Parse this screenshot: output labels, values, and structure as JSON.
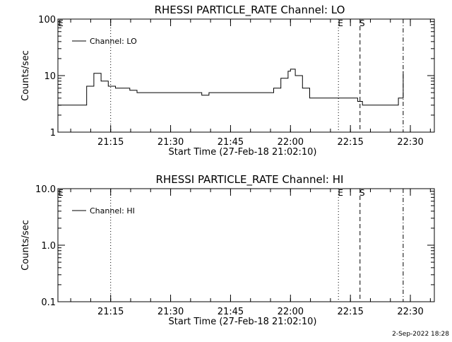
{
  "footer_timestamp": "2-Sep-2022 18:28",
  "chart_data": [
    {
      "type": "line",
      "title": "RHESSI PARTICLE_RATE Channel: LO",
      "xlabel": "Start Time (27-Feb-18 21:02:10)",
      "ylabel": "Counts/sec",
      "y_scale": "log",
      "ylim": [
        1,
        100
      ],
      "y_ticks": [
        {
          "value": 1,
          "label": "1"
        },
        {
          "value": 10,
          "label": "10"
        },
        {
          "value": 100,
          "label": "100"
        }
      ],
      "x_range_minutes": [
        21.03,
        22.6
      ],
      "x_ticks": [
        {
          "value": 21.25,
          "label": "21:15"
        },
        {
          "value": 21.5,
          "label": "21:30"
        },
        {
          "value": 21.75,
          "label": "21:45"
        },
        {
          "value": 22.0,
          "label": "22:00"
        },
        {
          "value": 22.25,
          "label": "22:15"
        },
        {
          "value": 22.5,
          "label": "22:30"
        }
      ],
      "legend": {
        "entries": [
          "Channel: LO"
        ],
        "placement": "top-left"
      },
      "markers": [
        {
          "label": "E",
          "x": 21.02,
          "style": "none"
        },
        {
          "label": "",
          "x": 21.25,
          "style": "dotted"
        },
        {
          "label": "E",
          "x": 22.2,
          "style": "dotted"
        },
        {
          "label": "S",
          "x": 22.29,
          "style": "dashed"
        },
        {
          "label": "",
          "x": 22.47,
          "style": "dashdot"
        }
      ],
      "series": [
        {
          "name": "Channel: LO",
          "x": [
            21.03,
            21.06,
            21.09,
            21.12,
            21.15,
            21.18,
            21.21,
            21.24,
            21.27,
            21.3,
            21.33,
            21.36,
            21.39,
            21.42,
            21.45,
            21.48,
            21.51,
            21.54,
            21.57,
            21.6,
            21.63,
            21.66,
            21.69,
            21.72,
            21.75,
            21.78,
            21.81,
            21.84,
            21.87,
            21.9,
            21.93,
            21.96,
            21.99,
            22.0,
            22.02,
            22.05,
            22.08,
            22.11,
            22.14,
            22.17,
            22.2,
            22.22,
            22.25,
            22.28,
            22.3,
            22.33,
            22.36,
            22.39,
            22.41,
            22.43,
            22.45,
            22.47
          ],
          "y": [
            3,
            3,
            3,
            3,
            6.5,
            11,
            8,
            6.5,
            6,
            6,
            5.5,
            5,
            5,
            5,
            5,
            5,
            5,
            5,
            5,
            5,
            4.5,
            5,
            5,
            5,
            5,
            5,
            5,
            5,
            5,
            5,
            6,
            9,
            12,
            13,
            10,
            6,
            4,
            4,
            4,
            4,
            4,
            4,
            4,
            3.5,
            3,
            3,
            3,
            3,
            3,
            3,
            4,
            12
          ]
        }
      ]
    },
    {
      "type": "line",
      "title": "RHESSI PARTICLE_RATE Channel: HI",
      "xlabel": "Start Time (27-Feb-18 21:02:10)",
      "ylabel": "Counts/sec",
      "y_scale": "log",
      "ylim": [
        0.1,
        10
      ],
      "y_ticks": [
        {
          "value": 0.1,
          "label": "0.1"
        },
        {
          "value": 1,
          "label": "1.0"
        },
        {
          "value": 10,
          "label": "10.0"
        }
      ],
      "x_range_minutes": [
        21.03,
        22.6
      ],
      "x_ticks": [
        {
          "value": 21.25,
          "label": "21:15"
        },
        {
          "value": 21.5,
          "label": "21:30"
        },
        {
          "value": 21.75,
          "label": "21:45"
        },
        {
          "value": 22.0,
          "label": "22:00"
        },
        {
          "value": 22.25,
          "label": "22:15"
        },
        {
          "value": 22.5,
          "label": "22:30"
        }
      ],
      "legend": {
        "entries": [
          "Channel: HI"
        ],
        "placement": "top-left"
      },
      "markers": [
        {
          "label": "E",
          "x": 21.02,
          "style": "none"
        },
        {
          "label": "",
          "x": 21.25,
          "style": "dotted"
        },
        {
          "label": "E",
          "x": 22.2,
          "style": "dotted"
        },
        {
          "label": "S",
          "x": 22.29,
          "style": "dashed"
        },
        {
          "label": "",
          "x": 22.47,
          "style": "dashdot"
        }
      ],
      "series": []
    }
  ]
}
